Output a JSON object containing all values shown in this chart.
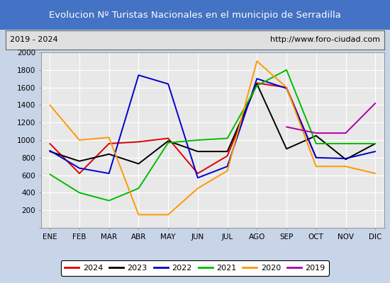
{
  "title": "Evolucion Nº Turistas Nacionales en el municipio de Serradilla",
  "subtitle_left": "2019 - 2024",
  "subtitle_right": "http://www.foro-ciudad.com",
  "title_bg_color": "#4472c4",
  "title_fg_color": "#ffffff",
  "months": [
    "ENE",
    "FEB",
    "MAR",
    "ABR",
    "MAY",
    "JUN",
    "JUL",
    "AGO",
    "SEP",
    "OCT",
    "NOV",
    "DIC"
  ],
  "ylim": [
    0,
    2000
  ],
  "yticks": [
    0,
    200,
    400,
    600,
    800,
    1000,
    1200,
    1400,
    1600,
    1800,
    2000
  ],
  "plot_bg": "#e8e8e8",
  "outer_bg": "#c8d4e8",
  "series": {
    "2024": {
      "color": "#dd0000",
      "data": [
        960,
        620,
        960,
        980,
        1020,
        620,
        820,
        1650,
        1600,
        800,
        null,
        null
      ]
    },
    "2023": {
      "color": "#000000",
      "data": [
        870,
        760,
        840,
        730,
        990,
        870,
        870,
        1640,
        900,
        1050,
        780,
        960
      ]
    },
    "2022": {
      "color": "#0000cc",
      "data": [
        880,
        680,
        620,
        1740,
        1640,
        570,
        700,
        1700,
        1590,
        800,
        790,
        870
      ]
    },
    "2021": {
      "color": "#00bb00",
      "data": [
        610,
        400,
        310,
        450,
        970,
        1000,
        1020,
        1620,
        1800,
        960,
        960,
        960
      ]
    },
    "2020": {
      "color": "#ff9900",
      "data": [
        1400,
        1000,
        1030,
        150,
        150,
        450,
        650,
        1900,
        1600,
        700,
        700,
        620
      ]
    },
    "2019": {
      "color": "#aa00aa",
      "data": [
        null,
        null,
        null,
        null,
        null,
        null,
        null,
        null,
        1150,
        1080,
        1080,
        1420
      ]
    }
  }
}
